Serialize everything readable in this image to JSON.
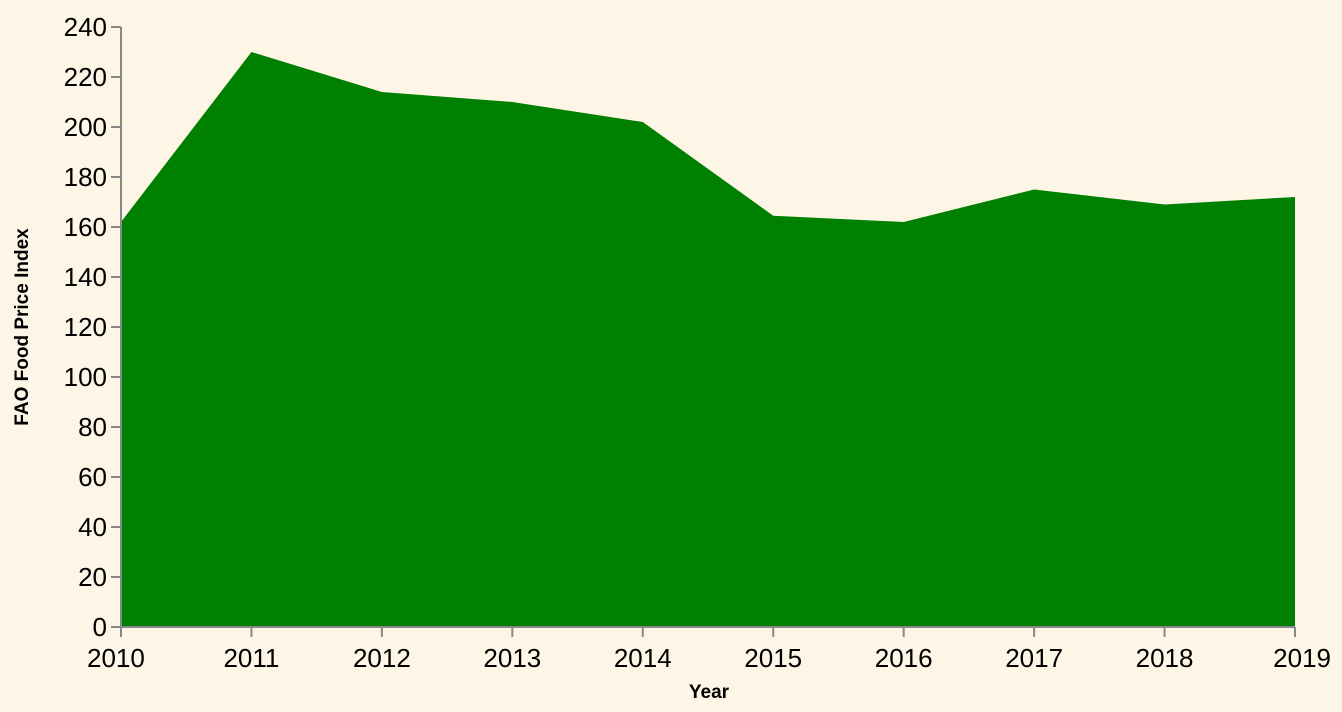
{
  "chart_data": {
    "type": "area",
    "x": [
      2010,
      2011,
      2012,
      2013,
      2014,
      2015,
      2016,
      2017,
      2018,
      2019
    ],
    "series": [
      {
        "values": [
          162,
          230,
          214,
          210,
          202,
          164.5,
          162,
          175,
          169,
          172
        ]
      }
    ],
    "xlabel": "Year",
    "ylabel": "FAO Food Price Index",
    "xlim": [
      2010,
      2019
    ],
    "ylim": [
      0,
      240
    ],
    "yticks": [
      0,
      20,
      40,
      60,
      80,
      100,
      120,
      140,
      160,
      180,
      200,
      220,
      240
    ],
    "xticks": [
      "2010",
      "2011",
      "2012",
      "2013",
      "2014",
      "2015",
      "2016",
      "2017",
      "2018",
      "2019"
    ],
    "grid": false,
    "fill_color": "#008000",
    "background_color": "#fdf5e6"
  }
}
